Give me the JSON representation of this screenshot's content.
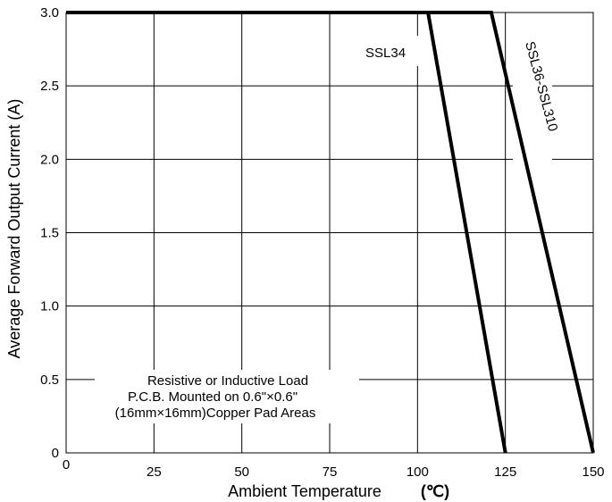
{
  "chart_data": {
    "type": "line",
    "title": "",
    "xlabel": "Ambient Temperature",
    "xunit": "(℃)",
    "ylabel": "Average Forward Output Current (A)",
    "xlim": [
      0,
      150
    ],
    "ylim": [
      0,
      3.0
    ],
    "x_ticks": [
      "0",
      "25",
      "50",
      "75",
      "100",
      "125",
      "150"
    ],
    "y_ticks": [
      "0",
      "0.5",
      "1.0",
      "1.5",
      "2.0",
      "2.5",
      "3.0"
    ],
    "grid": true,
    "series": [
      {
        "name": "SSL34",
        "x": [
          0,
          103,
          125
        ],
        "y": [
          3.0,
          3.0,
          0
        ]
      },
      {
        "name": "SSL36-SSL310",
        "x": [
          0,
          121,
          150
        ],
        "y": [
          3.0,
          3.0,
          0
        ]
      }
    ],
    "annotation": [
      "Resistive or Inductive Load",
      "P.C.B. Mounted on 0.6\"×0.6\"",
      "(16mm×16mm)Copper Pad Areas"
    ]
  }
}
